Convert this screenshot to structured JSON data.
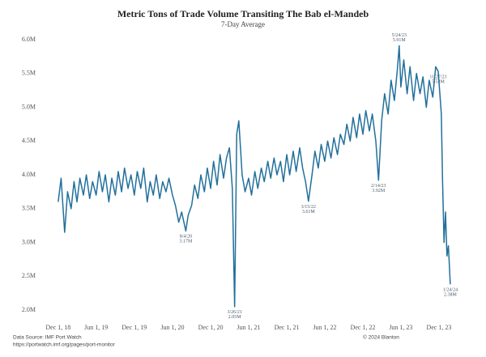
{
  "chart_data": {
    "type": "line",
    "title": "Metric Tons of Trade Volume Transiting The Bab el-Mandeb",
    "subtitle": "7-Day Average",
    "source": "Data Source: IMF Port Watch",
    "source_url": "https://portwatch.imf.org/pages/port-monitor",
    "copyright": "© 2024 Blanton",
    "color": "#22709b",
    "xlim": [
      "2018-11-20",
      "2024-02-05"
    ],
    "ylim": [
      2000000,
      6000000
    ],
    "yticks": [
      {
        "value": 2000000,
        "label": "2.0M"
      },
      {
        "value": 2500000,
        "label": "2.5M"
      },
      {
        "value": 3000000,
        "label": "3.0M"
      },
      {
        "value": 3500000,
        "label": "3.5M"
      },
      {
        "value": 4000000,
        "label": "4.0M"
      },
      {
        "value": 4500000,
        "label": "4.5M"
      },
      {
        "value": 5000000,
        "label": "5.0M"
      },
      {
        "value": 5500000,
        "label": "5.5M"
      },
      {
        "value": 6000000,
        "label": "6.0M"
      }
    ],
    "xticks": [
      {
        "value": "2018-12-01",
        "label": "Dec 1, 18"
      },
      {
        "value": "2019-06-01",
        "label": "Jun 1, 19"
      },
      {
        "value": "2019-12-01",
        "label": "Dec 1, 19"
      },
      {
        "value": "2020-06-01",
        "label": "Jun 1, 20"
      },
      {
        "value": "2020-12-01",
        "label": "Dec 1, 20"
      },
      {
        "value": "2021-06-01",
        "label": "Jun 1, 21"
      },
      {
        "value": "2021-12-01",
        "label": "Dec 1, 21"
      },
      {
        "value": "2022-06-01",
        "label": "Jun 1, 22"
      },
      {
        "value": "2022-12-01",
        "label": "Dec 1, 22"
      },
      {
        "value": "2023-06-01",
        "label": "Jun 1, 23"
      },
      {
        "value": "2023-12-01",
        "label": "Dec 1, 23"
      }
    ],
    "x": [
      "2018-12-01",
      "2018-12-15",
      "2019-01-01",
      "2019-01-15",
      "2019-02-01",
      "2019-02-15",
      "2019-03-01",
      "2019-03-15",
      "2019-04-01",
      "2019-04-15",
      "2019-05-01",
      "2019-05-15",
      "2019-06-01",
      "2019-06-15",
      "2019-07-01",
      "2019-07-15",
      "2019-08-01",
      "2019-08-15",
      "2019-09-01",
      "2019-09-15",
      "2019-10-01",
      "2019-10-15",
      "2019-11-01",
      "2019-11-15",
      "2019-12-01",
      "2019-12-15",
      "2020-01-01",
      "2020-01-15",
      "2020-02-01",
      "2020-02-15",
      "2020-03-01",
      "2020-03-15",
      "2020-04-01",
      "2020-04-15",
      "2020-05-01",
      "2020-05-15",
      "2020-06-01",
      "2020-06-15",
      "2020-07-01",
      "2020-07-15",
      "2020-08-04",
      "2020-08-15",
      "2020-09-01",
      "2020-09-15",
      "2020-10-01",
      "2020-10-15",
      "2020-11-01",
      "2020-11-15",
      "2020-12-01",
      "2020-12-15",
      "2021-01-01",
      "2021-01-15",
      "2021-02-01",
      "2021-02-15",
      "2021-03-01",
      "2021-03-15",
      "2021-03-26",
      "2021-04-05",
      "2021-04-15",
      "2021-05-01",
      "2021-05-15",
      "2021-06-01",
      "2021-06-15",
      "2021-07-01",
      "2021-07-15",
      "2021-08-01",
      "2021-08-15",
      "2021-09-01",
      "2021-09-15",
      "2021-10-01",
      "2021-10-15",
      "2021-11-01",
      "2021-11-15",
      "2021-12-01",
      "2021-12-15",
      "2022-01-01",
      "2022-01-15",
      "2022-02-01",
      "2022-02-15",
      "2022-03-01",
      "2022-03-15",
      "2022-04-01",
      "2022-04-15",
      "2022-05-01",
      "2022-05-15",
      "2022-06-01",
      "2022-06-15",
      "2022-07-01",
      "2022-07-15",
      "2022-08-01",
      "2022-08-15",
      "2022-09-01",
      "2022-09-15",
      "2022-10-01",
      "2022-10-15",
      "2022-11-01",
      "2022-11-15",
      "2022-12-01",
      "2022-12-15",
      "2023-01-01",
      "2023-01-15",
      "2023-02-01",
      "2023-02-14",
      "2023-03-01",
      "2023-03-15",
      "2023-04-01",
      "2023-04-15",
      "2023-05-01",
      "2023-05-15",
      "2023-05-24",
      "2023-06-01",
      "2023-06-15",
      "2023-07-01",
      "2023-07-15",
      "2023-08-01",
      "2023-08-15",
      "2023-09-01",
      "2023-09-15",
      "2023-10-01",
      "2023-10-15",
      "2023-11-01",
      "2023-11-15",
      "2023-11-27",
      "2023-12-05",
      "2023-12-12",
      "2023-12-18",
      "2023-12-25",
      "2024-01-01",
      "2024-01-08",
      "2024-01-15",
      "2024-01-24"
    ],
    "values": [
      3600000,
      3950000,
      3150000,
      3750000,
      3500000,
      3900000,
      3600000,
      3950000,
      3700000,
      4000000,
      3650000,
      3900000,
      3700000,
      4050000,
      3750000,
      4000000,
      3600000,
      3950000,
      3700000,
      4050000,
      3750000,
      4100000,
      3800000,
      4000000,
      3700000,
      4050000,
      3800000,
      4100000,
      3600000,
      3900000,
      3700000,
      4000000,
      3650000,
      3900000,
      3750000,
      3950000,
      3700000,
      3550000,
      3300000,
      3450000,
      3170000,
      3400000,
      3550000,
      3850000,
      3650000,
      4000000,
      3750000,
      4100000,
      3800000,
      4200000,
      3850000,
      4300000,
      3950000,
      4250000,
      4400000,
      3800000,
      2050000,
      4600000,
      4800000,
      4000000,
      3750000,
      3950000,
      3700000,
      4050000,
      3800000,
      4100000,
      3900000,
      4200000,
      3950000,
      4250000,
      4000000,
      4200000,
      3900000,
      4300000,
      4000000,
      4350000,
      4050000,
      4400000,
      4100000,
      3900000,
      3610000,
      4000000,
      4350000,
      4100000,
      4450000,
      4200000,
      4500000,
      4250000,
      4550000,
      4300000,
      4600000,
      4450000,
      4750000,
      4500000,
      4850000,
      4550000,
      4900000,
      4600000,
      4950000,
      4650000,
      4900000,
      4500000,
      3920000,
      4800000,
      5200000,
      4900000,
      5400000,
      5100000,
      5550000,
      5910000,
      5300000,
      5700000,
      5200000,
      5600000,
      5100000,
      5500000,
      5200000,
      5450000,
      5000000,
      5400000,
      5150000,
      5600000,
      5530000,
      5200000,
      4900000,
      3900000,
      3000000,
      3450000,
      2800000,
      2950000,
      2380000
    ],
    "annotations": [
      {
        "x": "2020-08-04",
        "label": "8/4/20",
        "value_label": "3.17M"
      },
      {
        "x": "2021-03-26",
        "label": "3/26/21",
        "value_label": "2.05M"
      },
      {
        "x": "2022-03-15",
        "label": "3/15/22",
        "value_label": "3.61M"
      },
      {
        "x": "2023-02-14",
        "label": "2/14/23",
        "value_label": "3.92M"
      },
      {
        "x": "2023-05-24",
        "label": "5/24/23",
        "value_label": "5.91M"
      },
      {
        "x": "2023-11-27",
        "label": "11/27/23",
        "value_label": "5.53M"
      },
      {
        "x": "2024-01-24",
        "label": "1/24/24",
        "value_label": "2.38M"
      }
    ]
  }
}
